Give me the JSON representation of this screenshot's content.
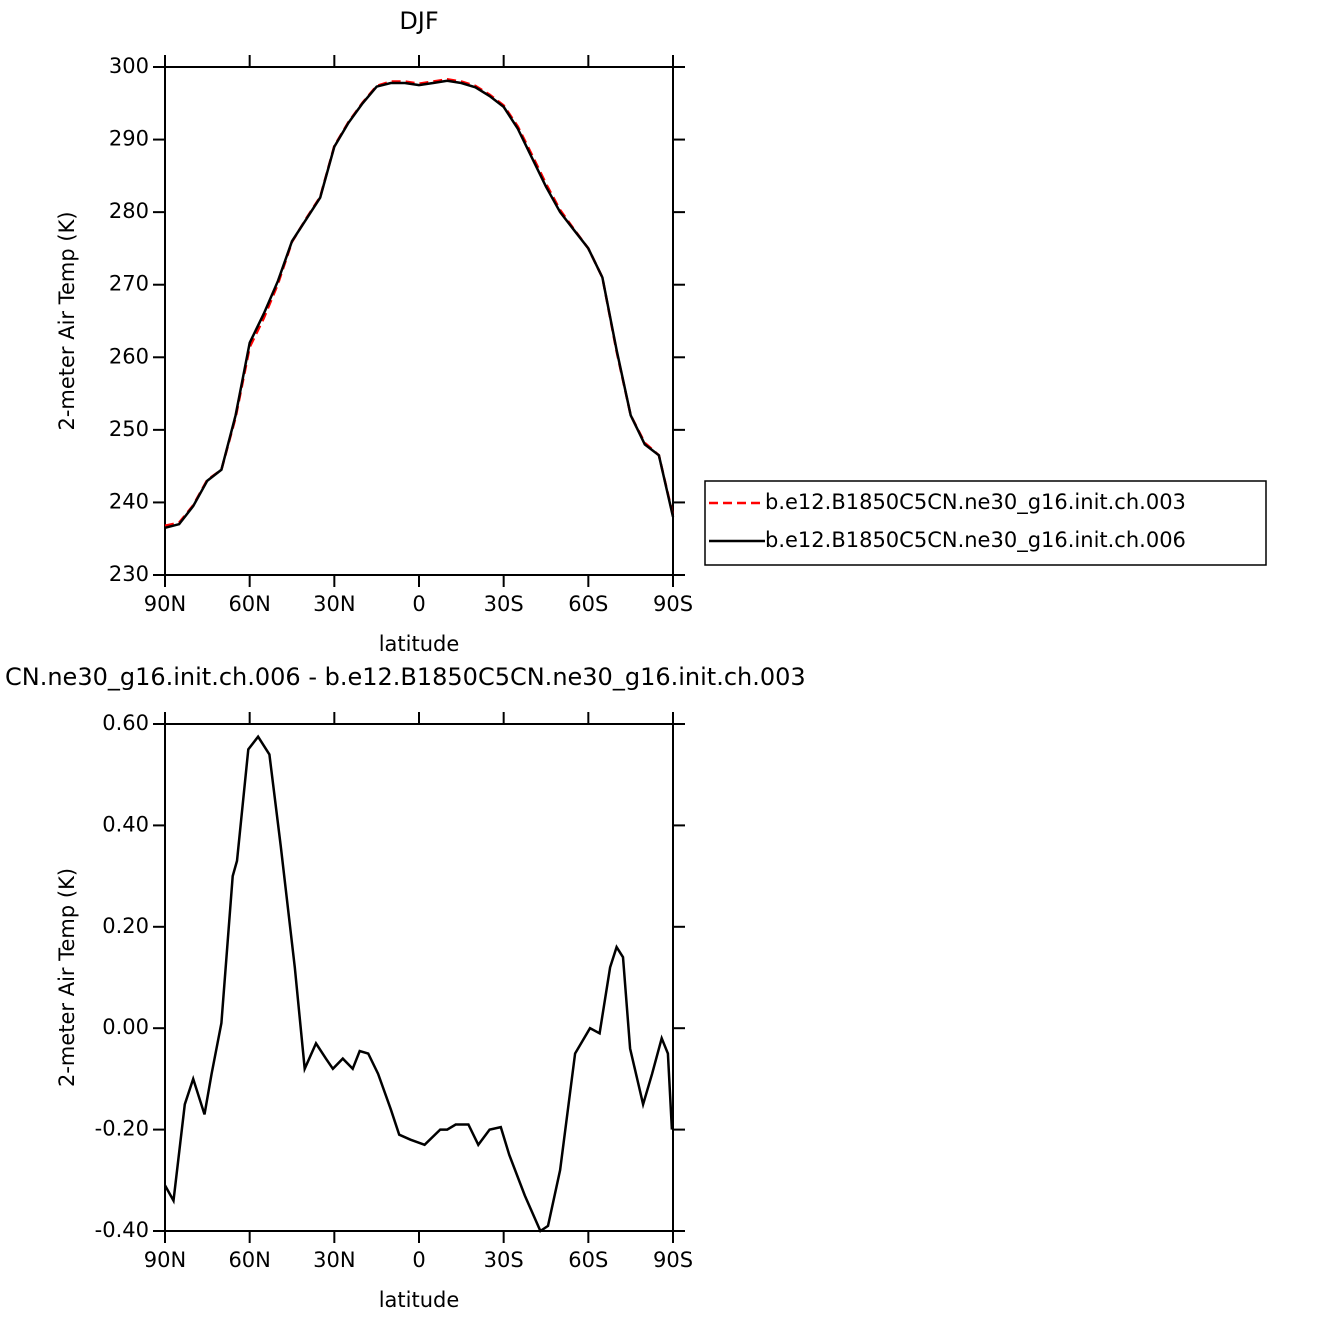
{
  "chart_data": [
    {
      "type": "line",
      "title": "DJF",
      "x_label": "latitude",
      "y_label": "2-meter Air Temp (K)",
      "x": [
        90,
        85,
        80,
        75,
        70,
        65,
        60,
        55,
        50,
        45,
        40,
        35,
        30,
        25,
        20,
        15,
        10,
        5,
        0,
        -5,
        -10,
        -15,
        -20,
        -25,
        -30,
        -35,
        -40,
        -45,
        -50,
        -55,
        -60,
        -65,
        -70,
        -75,
        -80,
        -85,
        -90
      ],
      "series": [
        {
          "name": "b.e12.B1850C5CN.ne30_g16.init.ch.003",
          "color": "#ff0000",
          "line_style": "dashed",
          "values": [
            236.8,
            237.2,
            239.6,
            243.1,
            244.5,
            251.7,
            261.4,
            265.4,
            270.1,
            275.9,
            279.1,
            282.1,
            289.1,
            292.4,
            295.1,
            297.4,
            298.0,
            298.0,
            297.7,
            298.0,
            298.3,
            298.0,
            297.4,
            296.2,
            294.7,
            291.8,
            287.9,
            283.9,
            280.3,
            277.6,
            275.0,
            271.0,
            260.8,
            252.0,
            248.2,
            246.5,
            238.2
          ]
        },
        {
          "name": "b.e12.B1850C5CN.ne30_g16.init.ch.006",
          "color": "#000000",
          "line_style": "solid",
          "values": [
            236.5,
            237.0,
            239.5,
            243.0,
            244.5,
            252.0,
            262.0,
            266.0,
            270.5,
            276.0,
            279.0,
            282.0,
            289.0,
            292.3,
            295.0,
            297.3,
            297.8,
            297.8,
            297.5,
            297.8,
            298.1,
            297.8,
            297.2,
            296.0,
            294.5,
            291.5,
            287.5,
            283.5,
            280.0,
            277.5,
            275.0,
            271.0,
            261.0,
            252.0,
            248.0,
            246.5,
            238.0
          ]
        }
      ],
      "xlim": [
        90,
        -90
      ],
      "xticks": [
        {
          "value": 90,
          "label": "90N"
        },
        {
          "value": 60,
          "label": "60N"
        },
        {
          "value": 30,
          "label": "30N"
        },
        0,
        {
          "value": -30,
          "label": "30S"
        },
        {
          "value": -60,
          "label": "60S"
        },
        {
          "value": -90,
          "label": "90S"
        }
      ],
      "ylim": [
        230,
        300
      ],
      "yticks": [
        230,
        240,
        250,
        260,
        270,
        280,
        290,
        300
      ],
      "legend": "right"
    },
    {
      "type": "line",
      "title": "CN.ne30_g16.init.ch.006 - b.e12.B1850C5CN.ne30_g16.init.ch.003",
      "x_label": "latitude",
      "y_label": "2-meter Air Temp (K)",
      "x": [
        90,
        87,
        83,
        80,
        76,
        73.5,
        70,
        66,
        64.5,
        60.5,
        57,
        53,
        49,
        44,
        40.5,
        36.5,
        33,
        30.5,
        27,
        23.5,
        21,
        18,
        14.5,
        10,
        7,
        3,
        -2,
        -7.5,
        -10,
        -13,
        -17.5,
        -21,
        -25,
        -29,
        -32,
        -37.5,
        -43,
        -45.7,
        -50,
        -55.3,
        -60.6,
        -64,
        -67.7,
        -70,
        -72.3,
        -74.8,
        -79.4,
        -82.6,
        -86,
        -88.2,
        -89.6
      ],
      "values": [
        -0.31,
        -0.34,
        -0.15,
        -0.1,
        -0.17,
        -0.09,
        0.01,
        0.3,
        0.33,
        0.55,
        0.575,
        0.54,
        0.36,
        0.12,
        -0.08,
        -0.03,
        -0.06,
        -0.08,
        -0.06,
        -0.08,
        -0.045,
        -0.05,
        -0.09,
        -0.16,
        -0.21,
        -0.22,
        -0.23,
        -0.2,
        -0.2,
        -0.19,
        -0.19,
        -0.23,
        -0.2,
        -0.195,
        -0.25,
        -0.33,
        -0.4,
        -0.39,
        -0.28,
        -0.05,
        0.0,
        -0.01,
        0.12,
        0.16,
        0.14,
        -0.04,
        -0.15,
        -0.09,
        -0.02,
        -0.05,
        -0.2
      ],
      "color": "#000000",
      "xlim": [
        90,
        -90
      ],
      "xticks": [
        {
          "value": 90,
          "label": "90N"
        },
        {
          "value": 60,
          "label": "60N"
        },
        {
          "value": 30,
          "label": "30N"
        },
        0,
        {
          "value": -30,
          "label": "30S"
        },
        {
          "value": -60,
          "label": "60S"
        },
        {
          "value": -90,
          "label": "90S"
        }
      ],
      "ylim": [
        -0.4,
        0.6
      ],
      "yticks": [
        {
          "value": -0.4,
          "label": "-0.40"
        },
        {
          "value": -0.2,
          "label": "-0.20"
        },
        {
          "value": 0,
          "label": "0.00"
        },
        {
          "value": 0.2,
          "label": "0.20"
        },
        {
          "value": 0.4,
          "label": "0.40"
        },
        {
          "value": 0.6,
          "label": "0.60"
        }
      ]
    }
  ]
}
